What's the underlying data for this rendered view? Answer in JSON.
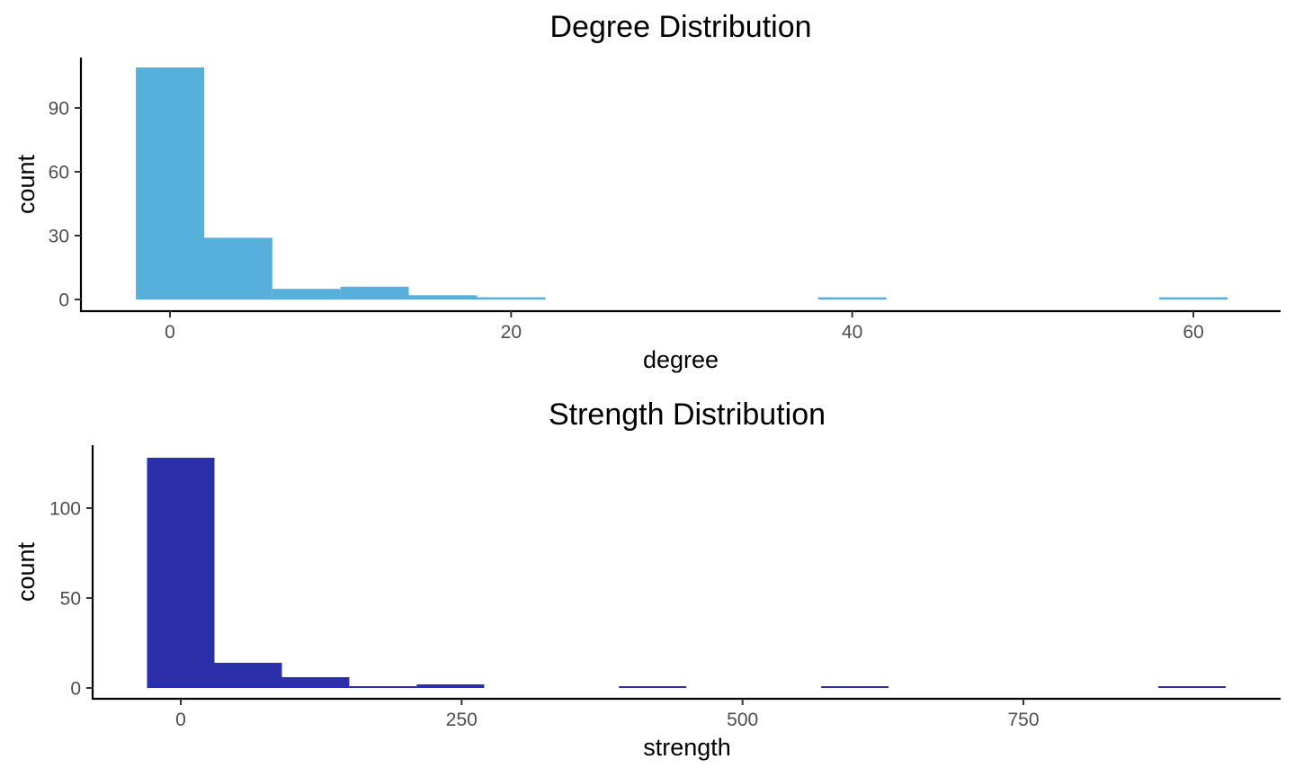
{
  "chart_data": [
    {
      "type": "bar",
      "title": "Degree Distribution",
      "xlabel": "degree",
      "ylabel": "count",
      "color": "#56B0DB",
      "bin_width": 4,
      "xlim": [
        -5,
        65
      ],
      "ylim": [
        0,
        112
      ],
      "x_ticks": [
        0,
        20,
        40,
        60
      ],
      "y_ticks": [
        0,
        30,
        60,
        90
      ],
      "grid": false,
      "bins": [
        {
          "center": 0,
          "count": 109
        },
        {
          "center": 4,
          "count": 29
        },
        {
          "center": 8,
          "count": 5
        },
        {
          "center": 12,
          "count": 6
        },
        {
          "center": 16,
          "count": 2
        },
        {
          "center": 20,
          "count": 1
        },
        {
          "center": 40,
          "count": 1
        },
        {
          "center": 60,
          "count": 1
        }
      ]
    },
    {
      "type": "bar",
      "title": "Strength Distribution",
      "xlabel": "strength",
      "ylabel": "count",
      "color": "#2B2FAA",
      "bin_width": 60,
      "xlim": [
        -80,
        980
      ],
      "ylim": [
        0,
        134
      ],
      "x_ticks": [
        0,
        250,
        500,
        750
      ],
      "y_ticks": [
        0,
        50,
        100
      ],
      "grid": false,
      "bins": [
        {
          "center": 0,
          "count": 128
        },
        {
          "center": 60,
          "count": 14
        },
        {
          "center": 120,
          "count": 6
        },
        {
          "center": 180,
          "count": 1
        },
        {
          "center": 240,
          "count": 2
        },
        {
          "center": 420,
          "count": 1
        },
        {
          "center": 600,
          "count": 1
        },
        {
          "center": 900,
          "count": 1
        }
      ]
    }
  ]
}
